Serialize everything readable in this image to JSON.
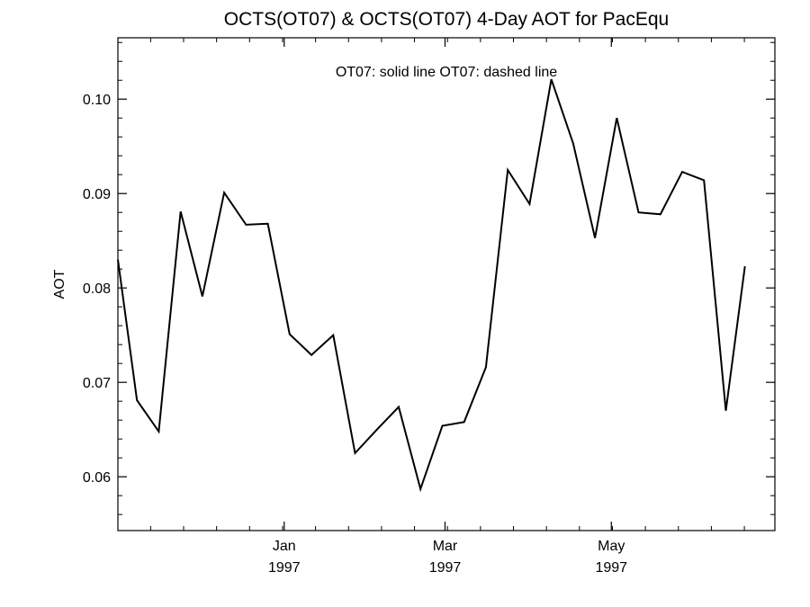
{
  "chart_data": {
    "type": "line",
    "title": "OCTS(OT07) & OCTS(OT07) 4-Day AOT for PacEqu",
    "annotation": "OT07: solid line   OT07: dashed line",
    "ylabel": "AOT",
    "xlabel": "",
    "ylim": [
      0.0543,
      0.1065
    ],
    "xlim": [
      "1996-11-01",
      "1997-06-30"
    ],
    "yticks": [
      "0.06",
      "0.07",
      "0.08",
      "0.09",
      "0.10"
    ],
    "ytick_values": [
      0.06,
      0.07,
      0.08,
      0.09,
      0.1
    ],
    "xticks": [
      {
        "date": "1997-01-01",
        "month": "Jan",
        "year": "1997"
      },
      {
        "date": "1997-03-01",
        "month": "Mar",
        "year": "1997"
      },
      {
        "date": "1997-05-01",
        "month": "May",
        "year": "1997"
      }
    ],
    "grid": false,
    "series": [
      {
        "style": "solid",
        "color": "#000000",
        "x": [
          "1996-11-01",
          "1996-11-08",
          "1996-11-16",
          "1996-11-24",
          "1996-12-02",
          "1996-12-10",
          "1996-12-18",
          "1996-12-26",
          "1997-01-03",
          "1997-01-11",
          "1997-01-19",
          "1997-01-27",
          "1997-02-04",
          "1997-02-12",
          "1997-02-20",
          "1997-02-28",
          "1997-03-08",
          "1997-03-16",
          "1997-03-24",
          "1997-04-01",
          "1997-04-09",
          "1997-04-17",
          "1997-04-25",
          "1997-05-03",
          "1997-05-11",
          "1997-05-19",
          "1997-05-27",
          "1997-06-04",
          "1997-06-12",
          "1997-06-19"
        ],
        "values": [
          0.083,
          0.0681,
          0.0648,
          0.0881,
          0.0791,
          0.0901,
          0.0867,
          0.0868,
          0.0751,
          0.0729,
          0.075,
          0.0625,
          0.065,
          0.0674,
          0.0587,
          0.0654,
          0.0658,
          0.0716,
          0.0925,
          0.0889,
          0.1021,
          0.0953,
          0.0853,
          0.098,
          0.088,
          0.0878,
          0.0923,
          0.0914,
          0.067,
          0.0823
        ]
      }
    ]
  }
}
